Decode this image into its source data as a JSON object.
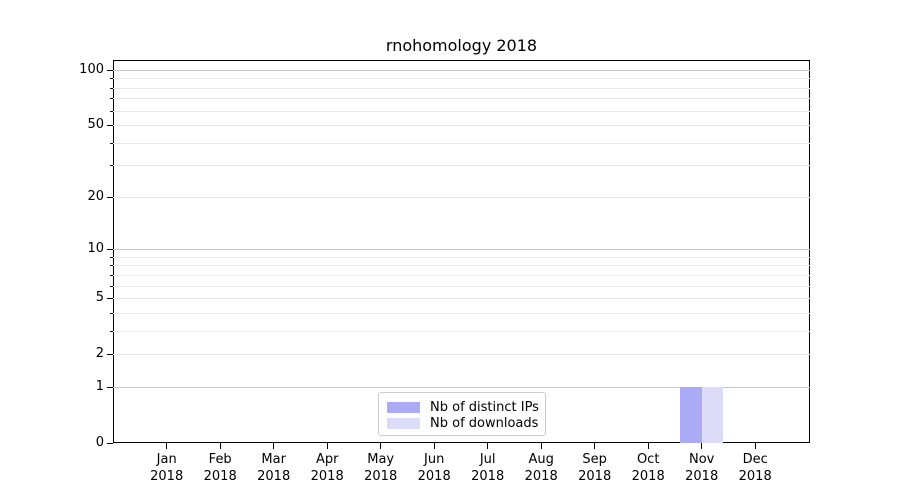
{
  "chart_data": {
    "type": "bar",
    "title": "rnohomology 2018",
    "x": {
      "months": [
        "Jan",
        "Feb",
        "Mar",
        "Apr",
        "May",
        "Jun",
        "Jul",
        "Aug",
        "Sep",
        "Oct",
        "Nov",
        "Dec"
      ],
      "year": "2018"
    },
    "y_axis": {
      "scale": "log1p",
      "ticks": [
        0,
        1,
        2,
        5,
        10,
        20,
        50,
        100
      ],
      "major_gridlines": [
        1,
        10,
        100
      ],
      "minor_gridlines": [
        2,
        3,
        4,
        5,
        6,
        7,
        8,
        9,
        20,
        30,
        40,
        50,
        60,
        70,
        80,
        90
      ],
      "ylim": [
        0,
        113
      ],
      "grid_color_major": "#c8c8c8",
      "grid_color_minor": "#e9e9e9"
    },
    "series": [
      {
        "name": "Nb of distinct IPs",
        "color": "#aaaaf5",
        "values": [
          0,
          0,
          0,
          0,
          0,
          0,
          0,
          0,
          0,
          0,
          1,
          0
        ]
      },
      {
        "name": "Nb of downloads",
        "color": "#dcdcf8",
        "values": [
          0,
          0,
          0,
          0,
          0,
          0,
          0,
          0,
          0,
          0,
          1,
          0
        ]
      }
    ],
    "legend": {
      "position": "lower center",
      "border_color": "#cccccc",
      "background": "#ffffff"
    },
    "grid": "horizontal",
    "background": "#ffffff"
  }
}
